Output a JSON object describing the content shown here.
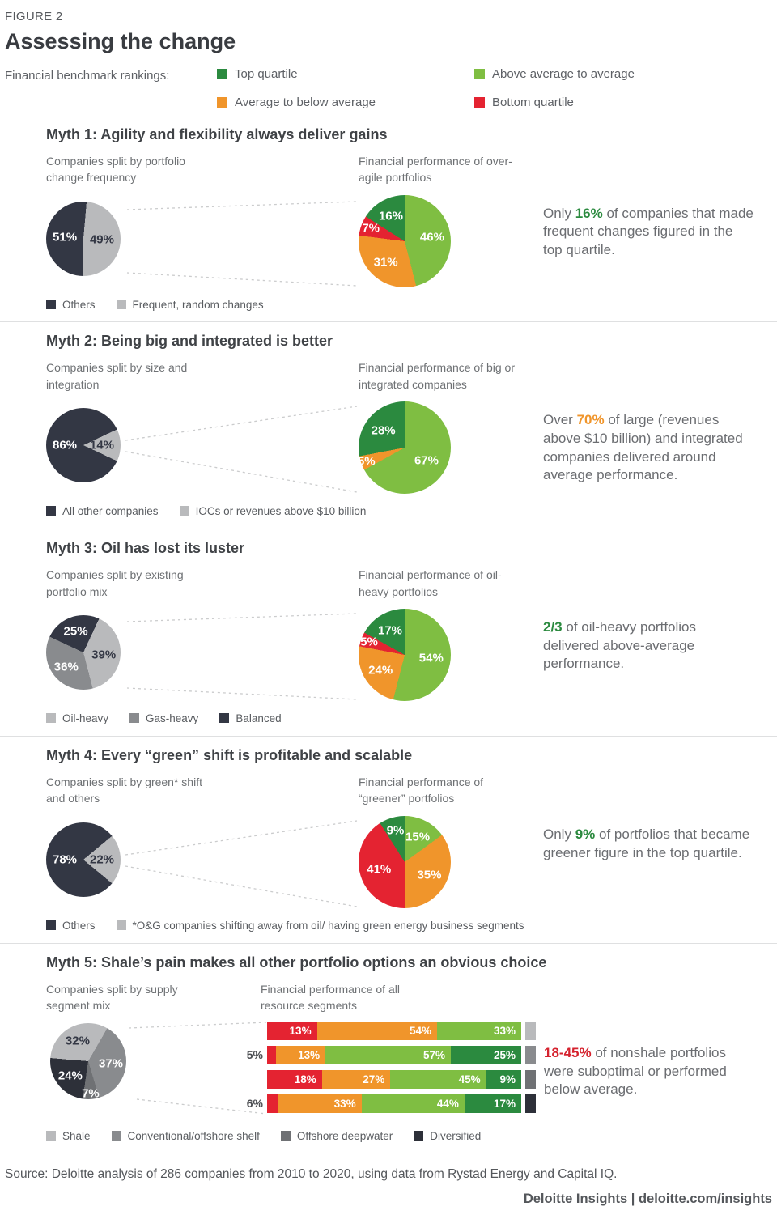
{
  "figure_label": "FIGURE 2",
  "title": "Assessing the change",
  "benchmark_legend": {
    "label": "Financial benchmark rankings:",
    "items": [
      {
        "label": "Top quartile",
        "color": "#2b8a3f"
      },
      {
        "label": "Above average to average",
        "color": "#7fbe42"
      },
      {
        "label": "Average to below average",
        "color": "#f0952b"
      },
      {
        "label": "Bottom quartile",
        "color": "#e42331"
      }
    ]
  },
  "myths": [
    {
      "title": "Myth 1: Agility and flexibility always deliver gains",
      "side_text": {
        "before": "Only ",
        "highlight": "16%",
        "highlight_color": "#2b8a3f",
        "after": " of companies that made frequent changes figured in the top quartile."
      },
      "legend": [
        {
          "label": "Others",
          "color": "#333744"
        },
        {
          "label": "Frequent, random changes",
          "color": "#b9babc"
        }
      ]
    },
    {
      "title": "Myth 2: Being big and integrated is better",
      "side_text": {
        "before": "Over ",
        "highlight": "70%",
        "highlight_color": "#f0952b",
        "after": " of large (revenues above $10 billion) and integrated companies delivered around average performance."
      },
      "legend": [
        {
          "label": "All other companies",
          "color": "#333744"
        },
        {
          "label": "IOCs or revenues above $10 billion",
          "color": "#b9babc"
        }
      ]
    },
    {
      "title": "Myth 3: Oil has lost its luster",
      "side_text": {
        "before": "",
        "highlight": "2/3",
        "highlight_color": "#2b8a3f",
        "after": " of oil-heavy portfolios delivered above-average performance."
      },
      "legend": [
        {
          "label": "Oil-heavy",
          "color": "#b9babc"
        },
        {
          "label": "Gas-heavy",
          "color": "#898b8e"
        },
        {
          "label": "Balanced",
          "color": "#333744"
        }
      ]
    },
    {
      "title": "Myth 4: Every “green” shift is profitable and scalable",
      "side_text": {
        "before": "Only ",
        "highlight": "9%",
        "highlight_color": "#2b8a3f",
        "after": " of portfolios that became greener figure in the top quartile."
      },
      "legend": [
        {
          "label": "Others",
          "color": "#333744"
        },
        {
          "label": "*O&G companies shifting away from oil/ having green energy business segments",
          "color": "#b9babc"
        }
      ]
    },
    {
      "title": "Myth 5: Shale’s pain makes all other portfolio options an obvious choice",
      "side_text": {
        "before": "",
        "highlight": "18-45%",
        "highlight_color": "#d5222e",
        "after": " of nonshale portfolios were suboptimal or performed below average."
      },
      "legend": [
        {
          "label": "Shale",
          "color": "#b9babc"
        },
        {
          "label": "Conventional/offshore shelf",
          "color": "#898b8e"
        },
        {
          "label": "Offshore deepwater",
          "color": "#6f7174"
        },
        {
          "label": "Diversified",
          "color": "#2d3039"
        }
      ]
    }
  ],
  "chart_data": [
    {
      "type": "pie",
      "title": "Companies split by portfolio change frequency",
      "rotate": 5,
      "slices": [
        {
          "label": "Frequent, random changes",
          "value": 49,
          "color": "#b9babc",
          "label_color": "#333744",
          "lr": 0.5
        },
        {
          "label": "Others",
          "value": 51,
          "color": "#333744",
          "label_color": "#ffffff",
          "lr": 0.5
        }
      ]
    },
    {
      "type": "pie",
      "title": "Financial performance of over-agile portfolios",
      "rotate": 0,
      "slices": [
        {
          "label": "Above average to average",
          "value": 46,
          "color": "#7fbe42",
          "label_color": "#ffffff",
          "lr": 0.6
        },
        {
          "label": "Average to below average",
          "value": 31,
          "color": "#f0952b",
          "label_color": "#ffffff",
          "lr": 0.62
        },
        {
          "label": "Bottom quartile",
          "value": 7,
          "color": "#e42331",
          "label_color": "#ffffff",
          "lr": 0.78
        },
        {
          "label": "Top quartile",
          "value": 16,
          "color": "#2b8a3f",
          "label_color": "#ffffff",
          "lr": 0.62
        }
      ]
    },
    {
      "type": "pie",
      "title": "Companies split by size and integration",
      "rotate": 64.8,
      "slices": [
        {
          "label": "IOCs or revenues above $10 billion",
          "value": 14,
          "color": "#b9babc",
          "label_color": "#333744",
          "lr": 0.5
        },
        {
          "label": "All other companies",
          "value": 86,
          "color": "#333744",
          "label_color": "#ffffff",
          "lr": 0.5
        }
      ]
    },
    {
      "type": "pie",
      "title": "Financial performance of big or integrated companies",
      "rotate": 0,
      "slices": [
        {
          "label": "Above average to average",
          "value": 67,
          "color": "#7fbe42",
          "label_color": "#ffffff",
          "lr": 0.55
        },
        {
          "label": "Average to below average",
          "value": 5,
          "color": "#f0952b",
          "label_color": "#ffffff",
          "lr": 0.88
        },
        {
          "label": "Top quartile",
          "value": 28,
          "color": "#2b8a3f",
          "label_color": "#ffffff",
          "lr": 0.6
        }
      ]
    },
    {
      "type": "pie",
      "title": "Companies split by existing portfolio mix",
      "rotate": 25,
      "slices": [
        {
          "label": "Oil-heavy",
          "value": 39,
          "color": "#b9babc",
          "label_color": "#333744",
          "lr": 0.55
        },
        {
          "label": "Gas-heavy",
          "value": 36,
          "color": "#898b8e",
          "label_color": "#ffffff",
          "lr": 0.6
        },
        {
          "label": "Balanced",
          "value": 25,
          "color": "#333744",
          "label_color": "#ffffff",
          "lr": 0.6
        }
      ]
    },
    {
      "type": "pie",
      "title": "Financial performance of oil-heavy portfolios",
      "rotate": 0,
      "slices": [
        {
          "label": "Above average to average",
          "value": 54,
          "color": "#7fbe42",
          "label_color": "#ffffff",
          "lr": 0.58
        },
        {
          "label": "Average to below average",
          "value": 24,
          "color": "#f0952b",
          "label_color": "#ffffff",
          "lr": 0.62
        },
        {
          "label": "Bottom quartile",
          "value": 5,
          "color": "#e42331",
          "label_color": "#ffffff",
          "lr": 0.82
        },
        {
          "label": "Top quartile",
          "value": 17,
          "color": "#2b8a3f",
          "label_color": "#ffffff",
          "lr": 0.62
        }
      ]
    },
    {
      "type": "pie",
      "title": "Companies split by green* shift and others",
      "rotate": 50.4,
      "slices": [
        {
          "label": "*O&G companies shifting away from oil/ having green energy business segments",
          "value": 22,
          "color": "#b9babc",
          "label_color": "#333744",
          "lr": 0.5
        },
        {
          "label": "Others",
          "value": 78,
          "color": "#333744",
          "label_color": "#ffffff",
          "lr": 0.5
        }
      ]
    },
    {
      "type": "pie",
      "title": "Financial performance of “greener” portfolios",
      "rotate": 0,
      "slices": [
        {
          "label": "Above average to average",
          "value": 15,
          "color": "#7fbe42",
          "label_color": "#ffffff",
          "lr": 0.62
        },
        {
          "label": "Average to below average",
          "value": 35,
          "color": "#f0952b",
          "label_color": "#ffffff",
          "lr": 0.6
        },
        {
          "label": "Bottom quartile",
          "value": 41,
          "color": "#e42331",
          "label_color": "#ffffff",
          "lr": 0.58
        },
        {
          "label": "Top quartile",
          "value": 9,
          "color": "#2b8a3f",
          "label_color": "#ffffff",
          "lr": 0.72
        }
      ]
    },
    {
      "type": "pie",
      "title": "Companies split by supply segment mix",
      "rotate": 30,
      "slices": [
        {
          "label": "Conventional/offshore shelf",
          "value": 37,
          "color": "#898b8e",
          "label_color": "#ffffff",
          "lr": 0.6
        },
        {
          "label": "Offshore deepwater",
          "value": 7,
          "color": "#6f7174",
          "label_color": "#ffffff",
          "lr": 0.85
        },
        {
          "label": "Diversified",
          "value": 24,
          "color": "#2d3039",
          "label_color": "#ffffff",
          "lr": 0.6
        },
        {
          "label": "Shale",
          "value": 32,
          "color": "#b9babc",
          "label_color": "#333744",
          "lr": 0.6
        }
      ]
    },
    {
      "type": "stacked_bar_h",
      "title": "Financial performance of all resource segments",
      "xlim": [
        0,
        100
      ],
      "rows": [
        {
          "category": "Shale",
          "left_label": "",
          "cap_color": "#b9babc",
          "segments": [
            {
              "value": 13,
              "color": "#e42331",
              "label": "13%"
            },
            {
              "value": 54,
              "color": "#f0952b",
              "label": "54%"
            },
            {
              "value": 33,
              "color": "#7fbe42",
              "label": "33%"
            }
          ]
        },
        {
          "category": "Conventional/offshore shelf",
          "left_label": "5%",
          "cap_color": "#898b8e",
          "segments": [
            {
              "value": 5,
              "color": "#e42331",
              "label": ""
            },
            {
              "value": 13,
              "color": "#f0952b",
              "label": "13%"
            },
            {
              "value": 57,
              "color": "#7fbe42",
              "label": "57%"
            },
            {
              "value": 25,
              "color": "#2b8a3f",
              "label": "25%"
            }
          ]
        },
        {
          "category": "Offshore deepwater",
          "left_label": "",
          "cap_color": "#6f7174",
          "segments": [
            {
              "value": 18,
              "color": "#e42331",
              "label": "18%"
            },
            {
              "value": 27,
              "color": "#f0952b",
              "label": "27%"
            },
            {
              "value": 45,
              "color": "#7fbe42",
              "label": "45%"
            },
            {
              "value": 9,
              "color": "#2b8a3f",
              "label": "9%"
            }
          ]
        },
        {
          "category": "Diversified",
          "left_label": "6%",
          "cap_color": "#2d3039",
          "segments": [
            {
              "value": 6,
              "color": "#e42331",
              "label": ""
            },
            {
              "value": 33,
              "color": "#f0952b",
              "label": "33%"
            },
            {
              "value": 44,
              "color": "#7fbe42",
              "label": "44%"
            },
            {
              "value": 17,
              "color": "#2b8a3f",
              "label": "17%"
            }
          ]
        }
      ]
    }
  ],
  "source": "Source: Deloitte analysis of 286 companies from 2010 to 2020, using data from Rystad Energy and Capital IQ.",
  "footer_brand": "Deloitte Insights | deloitte.com/insights"
}
